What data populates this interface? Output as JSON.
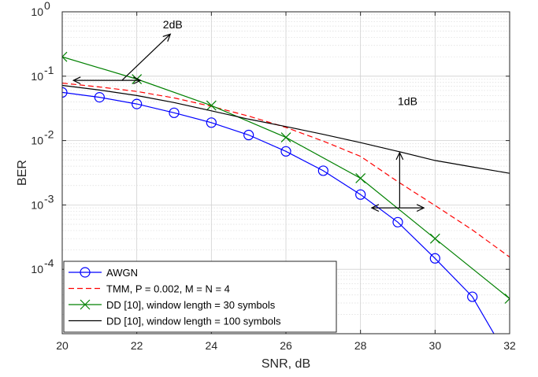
{
  "chart_data": {
    "type": "line",
    "xlabel": "SNR, dB",
    "ylabel": "BER",
    "xlim": [
      20,
      32
    ],
    "ylim": [
      1e-05,
      1
    ],
    "yscale": "log",
    "grid": true,
    "minor_grid": true,
    "legend_position": "bottom-left",
    "x_ticks": [
      20,
      22,
      24,
      26,
      28,
      30,
      32
    ],
    "x_tick_labels": [
      "20",
      "22",
      "24",
      "26",
      "28",
      "30",
      "32"
    ],
    "y_tick_labels": [
      {
        "value": 1,
        "base": "10",
        "exp": "0"
      },
      {
        "value": 0.1,
        "base": "10",
        "exp": "-1"
      },
      {
        "value": 0.01,
        "base": "10",
        "exp": "-2"
      },
      {
        "value": 0.001,
        "base": "10",
        "exp": "-3"
      },
      {
        "value": 0.0001,
        "base": "10",
        "exp": "-4"
      }
    ],
    "series": [
      {
        "name": "AWGN",
        "color": "#0000ff",
        "dash": "solid",
        "marker": "circle",
        "x": [
          20,
          21,
          22,
          23,
          24,
          25,
          26,
          27,
          28,
          29,
          30,
          31,
          31.6
        ],
        "y": [
          0.056,
          0.047,
          0.037,
          0.027,
          0.019,
          0.0122,
          0.0068,
          0.0034,
          0.00145,
          0.00054,
          0.000148,
          3.75e-05,
          9.5e-06
        ],
        "marker_indices": [
          0,
          1,
          2,
          3,
          4,
          5,
          6,
          7,
          8,
          9,
          10,
          11
        ]
      },
      {
        "name": "TMM, P = 0.002, M = N = 4",
        "color": "#ff0000",
        "dash": "dashed",
        "marker": "none",
        "x": [
          20,
          21,
          22,
          23,
          24,
          25,
          26,
          27,
          28,
          29,
          30,
          31,
          32
        ],
        "y": [
          0.078,
          0.068,
          0.058,
          0.046,
          0.034,
          0.024,
          0.016,
          0.0098,
          0.0057,
          0.0023,
          0.00098,
          0.00041,
          0.000155
        ],
        "marker_indices": []
      },
      {
        "name": "DD [10], window length = 30 symbols",
        "color": "#008000",
        "dash": "solid",
        "marker": "x",
        "x": [
          20,
          22,
          24,
          26,
          28,
          30,
          32
        ],
        "y": [
          0.2,
          0.09,
          0.035,
          0.0112,
          0.0026,
          0.0003,
          3.5e-05
        ],
        "marker_indices": [
          0,
          1,
          2,
          3,
          4,
          5,
          6
        ]
      },
      {
        "name": "DD [10], window length = 100 symbols",
        "color": "#000000",
        "dash": "solid",
        "marker": "none",
        "x": [
          20,
          21,
          22,
          23,
          24,
          25,
          26,
          27,
          28,
          29,
          30,
          31,
          32
        ],
        "y": [
          0.072,
          0.061,
          0.05,
          0.039,
          0.029,
          0.0215,
          0.0165,
          0.0125,
          0.0093,
          0.0068,
          0.0049,
          0.0039,
          0.0031
        ],
        "marker_indices": []
      }
    ],
    "annotations": [
      {
        "text": "2dB",
        "type": "arrows",
        "arrows": [
          {
            "from": [
              20.3,
              0.086
            ],
            "to": [
              22.1,
              0.086
            ],
            "double": true
          },
          {
            "from": [
              21.6,
              0.086
            ],
            "to": [
              22.9,
              0.45
            ],
            "double": false
          }
        ],
        "text_at": [
          22.7,
          0.55
        ]
      },
      {
        "text": "1dB",
        "type": "arrows",
        "arrows": [
          {
            "from": [
              28.3,
              0.0009
            ],
            "to": [
              29.7,
              0.0009
            ],
            "double": true
          },
          {
            "from": [
              29.05,
              0.0009
            ],
            "to": [
              29.05,
              0.0065
            ],
            "double": false
          }
        ],
        "text_at": [
          29.0,
          0.0355
        ]
      }
    ]
  }
}
